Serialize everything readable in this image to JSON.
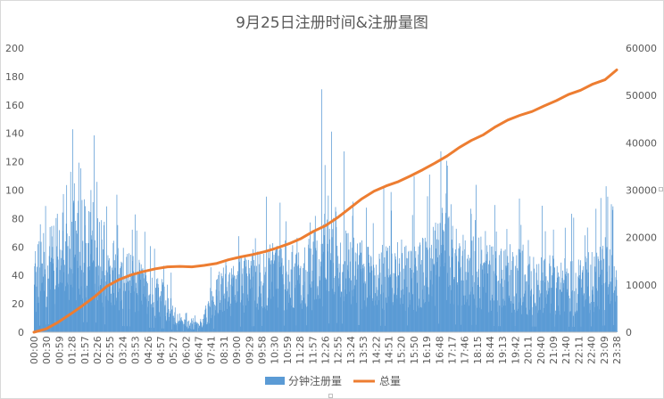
{
  "chart_data": {
    "type": "bar+line",
    "title": "9月25日注册时间&注册量图",
    "xlabel": "",
    "ylabel": "",
    "y_left": {
      "min": 0,
      "max": 200,
      "ticks": [
        "0",
        "20",
        "40",
        "60",
        "80",
        "100",
        "120",
        "140",
        "160",
        "180",
        "200"
      ]
    },
    "y_right": {
      "min": 0,
      "max": 60000,
      "ticks": [
        "0",
        "10000",
        "20000",
        "30000",
        "40000",
        "50000",
        "60000"
      ]
    },
    "x_tick_labels": [
      "00:00",
      "00:30",
      "00:59",
      "01:28",
      "01:57",
      "02:26",
      "02:55",
      "03:24",
      "03:53",
      "04:26",
      "04:57",
      "05:27",
      "06:02",
      "06:47",
      "07:41",
      "08:31",
      "09:00",
      "09:29",
      "09:58",
      "10:30",
      "10:59",
      "11:28",
      "11:57",
      "12:26",
      "12:55",
      "13:24",
      "13:53",
      "14:22",
      "14:51",
      "15:20",
      "15:50",
      "16:19",
      "16:48",
      "17:17",
      "17:46",
      "18:15",
      "18:44",
      "19:13",
      "19:42",
      "20:11",
      "20:40",
      "21:09",
      "21:40",
      "22:11",
      "22:40",
      "23:09",
      "23:38"
    ],
    "bar_profile": {
      "x": [
        "00:00",
        "00:30",
        "00:59",
        "01:28",
        "01:57",
        "02:26",
        "02:55",
        "03:24",
        "03:53",
        "04:26",
        "04:57",
        "05:27",
        "06:02",
        "06:47",
        "07:41",
        "08:31",
        "09:00",
        "09:29",
        "09:58",
        "10:30",
        "10:59",
        "11:28",
        "11:57",
        "12:26",
        "12:55",
        "13:24",
        "13:53",
        "14:22",
        "14:51",
        "15:20",
        "15:50",
        "16:19",
        "16:48",
        "17:17",
        "17:46",
        "18:15",
        "18:44",
        "19:13",
        "19:42",
        "20:11",
        "20:40",
        "21:09",
        "21:40",
        "22:11",
        "22:40",
        "23:09",
        "23:38"
      ],
      "values": [
        40,
        55,
        60,
        65,
        70,
        72,
        55,
        45,
        42,
        35,
        30,
        25,
        8,
        5,
        35,
        40,
        42,
        45,
        45,
        47,
        48,
        50,
        60,
        65,
        55,
        50,
        45,
        45,
        45,
        48,
        48,
        50,
        65,
        55,
        50,
        52,
        45,
        42,
        45,
        40,
        40,
        40,
        40,
        38,
        40,
        42,
        50
      ]
    },
    "bar_peaks": [
      {
        "x": "11:50",
        "value": 171
      }
    ],
    "series": [
      {
        "name": "分钟注册量",
        "type": "bar",
        "color": "#5b9bd5",
        "axis": "left"
      },
      {
        "name": "总量",
        "type": "line",
        "color": "#ed7d31",
        "axis": "right",
        "x": [
          "00:00",
          "00:30",
          "01:00",
          "01:30",
          "02:00",
          "02:30",
          "03:00",
          "03:30",
          "04:00",
          "04:30",
          "05:00",
          "05:30",
          "06:00",
          "06:30",
          "07:00",
          "07:30",
          "08:00",
          "08:30",
          "09:00",
          "09:30",
          "10:00",
          "10:30",
          "11:00",
          "11:30",
          "12:00",
          "12:30",
          "13:00",
          "13:30",
          "14:00",
          "14:30",
          "15:00",
          "15:30",
          "16:00",
          "16:30",
          "17:00",
          "17:30",
          "18:00",
          "18:30",
          "19:00",
          "19:30",
          "20:00",
          "20:30",
          "21:00",
          "21:30",
          "22:00",
          "22:30",
          "23:00",
          "23:30",
          "23:59"
        ],
        "values": [
          0,
          700,
          2100,
          3800,
          5600,
          7500,
          9700,
          11100,
          12100,
          12800,
          13400,
          13800,
          13900,
          13800,
          14100,
          14500,
          15300,
          15900,
          16400,
          17000,
          17800,
          18700,
          19800,
          21300,
          22500,
          24200,
          26200,
          28200,
          29800,
          30900,
          31800,
          33000,
          34300,
          35700,
          37200,
          39000,
          40500,
          41700,
          43400,
          44800,
          45800,
          46600,
          47800,
          48900,
          50200,
          51100,
          52400,
          53300,
          55400
        ]
      }
    ],
    "legend": {
      "position": "bottom",
      "items": [
        "分钟注册量",
        "总量"
      ]
    },
    "grid": false
  }
}
